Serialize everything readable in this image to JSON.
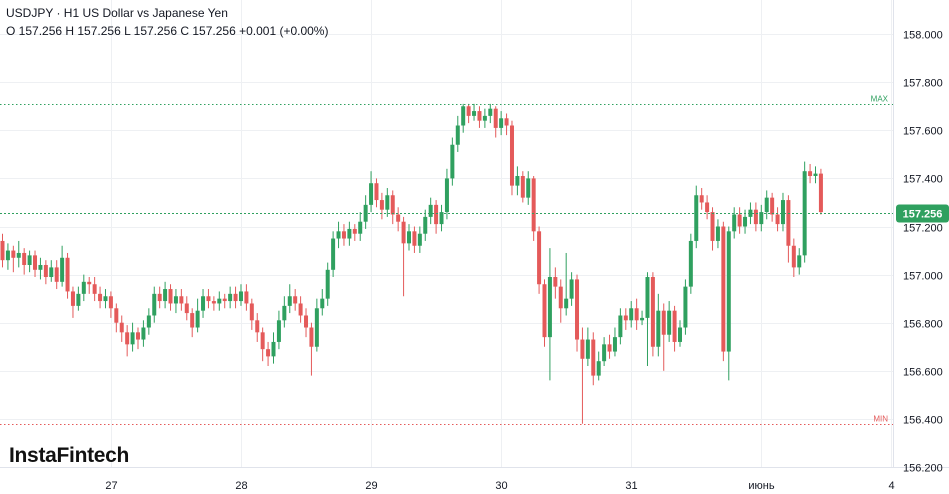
{
  "header": {
    "line1": "USDJPY · H1 US Dollar vs Japanese Yen",
    "line2": "O 157.256 H 157.256 L 157.256 C 157.256  +0.001 (+0.00%)"
  },
  "logo": "InstaFintech",
  "colors": {
    "up": "#2fa05f",
    "down": "#e45a5a",
    "price_tag": "#2fa05f",
    "grid": "#eef0f3"
  },
  "chart_data": {
    "type": "candlestick",
    "symbol": "USDJPY",
    "timeframe": "H1",
    "ylim": [
      156.2,
      158.04
    ],
    "y_ticks": [
      "158.000",
      "157.800",
      "157.600",
      "157.400",
      "157.200",
      "157.000",
      "156.800",
      "156.600",
      "156.400",
      "156.200"
    ],
    "x_ticks": [
      {
        "label": "27",
        "index": 20
      },
      {
        "label": "28",
        "index": 44
      },
      {
        "label": "29",
        "index": 68
      },
      {
        "label": "30",
        "index": 92
      },
      {
        "label": "31",
        "index": 116
      },
      {
        "label": "июнь",
        "index": 140
      },
      {
        "label": "4",
        "index": 164
      }
    ],
    "current_price": "157.256",
    "current_value": 157.256,
    "max": {
      "label": "MAX",
      "value": 157.71
    },
    "min": {
      "label": "MIN",
      "value": 156.38
    },
    "candles": [
      [
        157.14,
        157.06,
        157.17,
        157.03
      ],
      [
        157.06,
        157.1,
        157.13,
        157.02
      ],
      [
        157.1,
        157.07,
        157.12,
        157.01
      ],
      [
        157.07,
        157.09,
        157.14,
        157.03
      ],
      [
        157.09,
        157.04,
        157.11,
        157.0
      ],
      [
        157.04,
        157.08,
        157.1,
        157.01
      ],
      [
        157.08,
        157.02,
        157.1,
        156.99
      ],
      [
        157.02,
        157.04,
        157.07,
        156.98
      ],
      [
        157.04,
        156.99,
        157.06,
        156.96
      ],
      [
        156.99,
        157.03,
        157.06,
        156.97
      ],
      [
        157.03,
        156.97,
        157.06,
        156.94
      ],
      [
        156.97,
        157.07,
        157.12,
        156.95
      ],
      [
        157.07,
        156.93,
        157.09,
        156.9
      ],
      [
        156.93,
        156.87,
        156.95,
        156.82
      ],
      [
        156.87,
        156.92,
        156.95,
        156.85
      ],
      [
        156.92,
        156.97,
        157.0,
        156.89
      ],
      [
        156.97,
        156.96,
        156.99,
        156.92
      ],
      [
        156.96,
        156.92,
        156.99,
        156.89
      ],
      [
        156.92,
        156.89,
        156.95,
        156.86
      ],
      [
        156.89,
        156.91,
        156.94,
        156.86
      ],
      [
        156.91,
        156.86,
        156.93,
        156.82
      ],
      [
        156.86,
        156.8,
        156.88,
        156.76
      ],
      [
        156.8,
        156.76,
        156.83,
        156.72
      ],
      [
        156.76,
        156.71,
        156.79,
        156.66
      ],
      [
        156.71,
        156.76,
        156.8,
        156.68
      ],
      [
        156.76,
        156.73,
        156.78,
        156.69
      ],
      [
        156.73,
        156.78,
        156.81,
        156.7
      ],
      [
        156.78,
        156.83,
        156.86,
        156.75
      ],
      [
        156.83,
        156.92,
        156.95,
        156.8
      ],
      [
        156.92,
        156.89,
        156.95,
        156.86
      ],
      [
        156.89,
        156.94,
        156.97,
        156.86
      ],
      [
        156.94,
        156.88,
        156.96,
        156.85
      ],
      [
        156.88,
        156.91,
        156.94,
        156.84
      ],
      [
        156.91,
        156.88,
        156.94,
        156.85
      ],
      [
        156.88,
        156.84,
        156.91,
        156.81
      ],
      [
        156.84,
        156.78,
        156.86,
        156.74
      ],
      [
        156.78,
        156.85,
        156.9,
        156.76
      ],
      [
        156.85,
        156.91,
        156.94,
        156.82
      ],
      [
        156.91,
        156.89,
        156.94,
        156.86
      ],
      [
        156.89,
        156.88,
        156.91,
        156.85
      ],
      [
        156.88,
        156.9,
        156.93,
        156.85
      ],
      [
        156.9,
        156.89,
        156.92,
        156.86
      ],
      [
        156.89,
        156.92,
        156.95,
        156.86
      ],
      [
        156.92,
        156.89,
        156.95,
        156.86
      ],
      [
        156.89,
        156.93,
        156.96,
        156.87
      ],
      [
        156.93,
        156.88,
        156.96,
        156.85
      ],
      [
        156.88,
        156.81,
        156.9,
        156.77
      ],
      [
        156.81,
        156.76,
        156.84,
        156.72
      ],
      [
        156.76,
        156.69,
        156.78,
        156.64
      ],
      [
        156.69,
        156.66,
        156.72,
        156.62
      ],
      [
        156.66,
        156.72,
        156.76,
        156.63
      ],
      [
        156.72,
        156.81,
        156.85,
        156.69
      ],
      [
        156.81,
        156.87,
        156.91,
        156.78
      ],
      [
        156.87,
        156.91,
        156.96,
        156.84
      ],
      [
        156.91,
        156.88,
        156.94,
        156.85
      ],
      [
        156.88,
        156.83,
        156.91,
        156.8
      ],
      [
        156.83,
        156.78,
        156.86,
        156.74
      ],
      [
        156.78,
        156.7,
        156.8,
        156.58
      ],
      [
        156.7,
        156.86,
        156.9,
        156.68
      ],
      [
        156.86,
        156.9,
        156.94,
        156.83
      ],
      [
        156.9,
        157.02,
        157.05,
        156.87
      ],
      [
        157.02,
        157.15,
        157.18,
        156.99
      ],
      [
        157.15,
        157.18,
        157.22,
        157.11
      ],
      [
        157.18,
        157.15,
        157.21,
        157.12
      ],
      [
        157.15,
        157.19,
        157.22,
        157.12
      ],
      [
        157.19,
        157.17,
        157.21,
        157.14
      ],
      [
        157.17,
        157.22,
        157.26,
        157.14
      ],
      [
        157.22,
        157.29,
        157.33,
        157.19
      ],
      [
        157.29,
        157.38,
        157.43,
        157.26
      ],
      [
        157.38,
        157.31,
        157.4,
        157.28
      ],
      [
        157.31,
        157.27,
        157.34,
        157.23
      ],
      [
        157.27,
        157.33,
        157.36,
        157.24
      ],
      [
        157.33,
        157.25,
        157.35,
        157.21
      ],
      [
        157.25,
        157.22,
        157.28,
        157.18
      ],
      [
        157.22,
        157.13,
        157.24,
        156.91
      ],
      [
        157.13,
        157.18,
        157.21,
        157.1
      ],
      [
        157.18,
        157.12,
        157.2,
        157.09
      ],
      [
        157.12,
        157.17,
        157.2,
        157.09
      ],
      [
        157.17,
        157.24,
        157.27,
        157.14
      ],
      [
        157.24,
        157.29,
        157.32,
        157.21
      ],
      [
        157.29,
        157.21,
        157.31,
        157.17
      ],
      [
        157.21,
        157.26,
        157.29,
        157.18
      ],
      [
        157.26,
        157.4,
        157.44,
        157.23
      ],
      [
        157.4,
        157.54,
        157.57,
        157.37
      ],
      [
        157.54,
        157.62,
        157.66,
        157.51
      ],
      [
        157.62,
        157.7,
        157.71,
        157.59
      ],
      [
        157.7,
        157.66,
        157.71,
        157.63
      ],
      [
        157.66,
        157.68,
        157.71,
        157.64
      ],
      [
        157.68,
        157.64,
        157.7,
        157.61
      ],
      [
        157.64,
        157.66,
        157.69,
        157.61
      ],
      [
        157.66,
        157.69,
        157.71,
        157.63
      ],
      [
        157.69,
        157.61,
        157.7,
        157.57
      ],
      [
        157.61,
        157.65,
        157.68,
        157.58
      ],
      [
        157.65,
        157.62,
        157.67,
        157.58
      ],
      [
        157.62,
        157.37,
        157.64,
        157.33
      ],
      [
        157.37,
        157.41,
        157.45,
        157.33
      ],
      [
        157.41,
        157.32,
        157.43,
        157.3
      ],
      [
        157.32,
        157.4,
        157.43,
        157.29
      ],
      [
        157.4,
        157.18,
        157.41,
        157.14
      ],
      [
        157.18,
        156.96,
        157.2,
        156.92
      ],
      [
        156.96,
        156.74,
        156.98,
        156.7
      ],
      [
        156.74,
        156.99,
        157.11,
        156.56
      ],
      [
        156.99,
        156.95,
        157.03,
        156.9
      ],
      [
        156.95,
        156.86,
        156.98,
        156.8
      ],
      [
        156.86,
        156.9,
        157.09,
        156.83
      ],
      [
        156.9,
        156.98,
        157.01,
        156.87
      ],
      [
        156.98,
        156.73,
        157.0,
        156.68
      ],
      [
        156.73,
        156.65,
        156.78,
        156.38
      ],
      [
        156.65,
        156.73,
        156.78,
        156.62
      ],
      [
        156.73,
        156.58,
        156.76,
        156.54
      ],
      [
        156.58,
        156.64,
        156.68,
        156.56
      ],
      [
        156.64,
        156.71,
        156.74,
        156.62
      ],
      [
        156.71,
        156.68,
        156.75,
        156.65
      ],
      [
        156.68,
        156.74,
        156.78,
        156.66
      ],
      [
        156.74,
        156.83,
        156.86,
        156.71
      ],
      [
        156.83,
        156.81,
        156.86,
        156.77
      ],
      [
        156.81,
        156.86,
        156.89,
        156.78
      ],
      [
        156.86,
        156.81,
        156.9,
        156.77
      ],
      [
        156.81,
        156.82,
        156.85,
        156.79
      ],
      [
        156.82,
        156.99,
        157.01,
        156.62
      ],
      [
        156.99,
        156.7,
        157.01,
        156.66
      ],
      [
        156.7,
        156.85,
        156.92,
        156.66
      ],
      [
        156.85,
        156.75,
        156.88,
        156.6
      ],
      [
        156.75,
        156.85,
        156.89,
        156.72
      ],
      [
        156.85,
        156.72,
        156.87,
        156.68
      ],
      [
        156.72,
        156.78,
        156.81,
        156.7
      ],
      [
        156.78,
        156.95,
        156.98,
        156.75
      ],
      [
        156.95,
        157.14,
        157.17,
        156.92
      ],
      [
        157.14,
        157.33,
        157.37,
        157.11
      ],
      [
        157.33,
        157.3,
        157.36,
        157.27
      ],
      [
        157.3,
        157.26,
        157.33,
        157.23
      ],
      [
        157.26,
        157.14,
        157.28,
        157.1
      ],
      [
        157.14,
        157.2,
        157.23,
        157.11
      ],
      [
        157.2,
        156.68,
        157.22,
        156.64
      ],
      [
        156.68,
        157.18,
        157.2,
        156.56
      ],
      [
        157.18,
        157.25,
        157.28,
        157.15
      ],
      [
        157.25,
        157.2,
        157.28,
        157.17
      ],
      [
        157.2,
        157.24,
        157.27,
        157.17
      ],
      [
        157.24,
        157.27,
        157.3,
        157.21
      ],
      [
        157.27,
        157.21,
        157.3,
        157.18
      ],
      [
        157.21,
        157.26,
        157.29,
        157.18
      ],
      [
        157.26,
        157.32,
        157.35,
        157.23
      ],
      [
        157.32,
        157.25,
        157.34,
        157.22
      ],
      [
        157.25,
        157.21,
        157.28,
        157.18
      ],
      [
        157.21,
        157.31,
        157.34,
        157.18
      ],
      [
        157.31,
        157.12,
        157.33,
        157.05
      ],
      [
        157.12,
        157.03,
        157.15,
        156.99
      ],
      [
        157.03,
        157.08,
        157.11,
        157.0
      ],
      [
        157.08,
        157.43,
        157.47,
        157.05
      ],
      [
        157.43,
        157.41,
        157.46,
        157.38
      ],
      [
        157.41,
        157.42,
        157.45,
        157.38
      ],
      [
        157.42,
        157.26,
        157.44,
        157.25
      ]
    ]
  }
}
